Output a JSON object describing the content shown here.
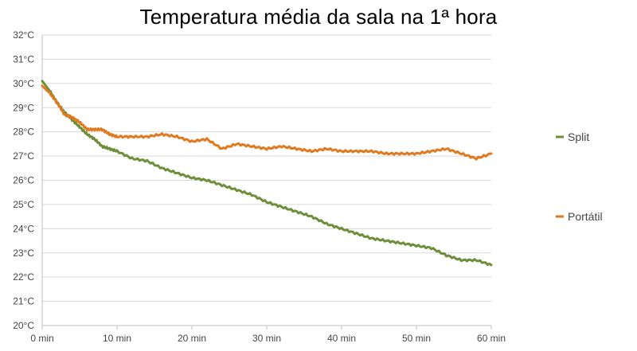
{
  "chart_data": {
    "type": "line",
    "title": "Temperatura média da sala na 1ª hora",
    "xlabel": "",
    "ylabel": "",
    "x_ticks": [
      "0 min",
      "10 min",
      "20 min",
      "30 min",
      "40 min",
      "50 min",
      "60 min"
    ],
    "y_ticks": [
      "20°C",
      "21°C",
      "22°C",
      "23°C",
      "24°C",
      "25°C",
      "26°C",
      "27°C",
      "28°C",
      "29°C",
      "30°C",
      "31°C",
      "32°C"
    ],
    "xlim": [
      0,
      60
    ],
    "ylim": [
      20,
      32
    ],
    "grid": "horizontal",
    "legend_position": "right",
    "x": [
      0,
      1,
      2,
      3,
      4,
      5,
      6,
      7,
      8,
      9,
      10,
      12,
      14,
      16,
      18,
      20,
      22,
      24,
      26,
      28,
      30,
      32,
      34,
      36,
      38,
      40,
      42,
      44,
      46,
      48,
      50,
      52,
      54,
      56,
      58,
      60
    ],
    "series": [
      {
        "name": "Split",
        "color": "#6e8f3a",
        "values": [
          30.1,
          29.7,
          29.2,
          28.8,
          28.5,
          28.2,
          27.9,
          27.7,
          27.4,
          27.3,
          27.2,
          26.9,
          26.8,
          26.5,
          26.3,
          26.1,
          26.0,
          25.8,
          25.6,
          25.4,
          25.1,
          24.9,
          24.7,
          24.5,
          24.2,
          24.0,
          23.8,
          23.6,
          23.5,
          23.4,
          23.3,
          23.2,
          22.9,
          22.7,
          22.7,
          22.5
        ]
      },
      {
        "name": "Portátil",
        "color": "#e07a1f",
        "values": [
          29.9,
          29.6,
          29.2,
          28.7,
          28.6,
          28.4,
          28.1,
          28.1,
          28.1,
          27.9,
          27.8,
          27.8,
          27.8,
          27.9,
          27.8,
          27.6,
          27.7,
          27.3,
          27.5,
          27.4,
          27.3,
          27.4,
          27.3,
          27.2,
          27.3,
          27.2,
          27.2,
          27.2,
          27.1,
          27.1,
          27.1,
          27.2,
          27.3,
          27.1,
          26.9,
          27.1
        ]
      }
    ]
  }
}
